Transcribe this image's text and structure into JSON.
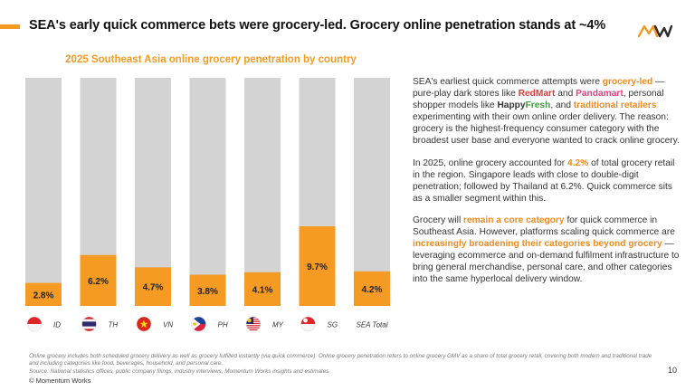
{
  "header": {
    "title": "SEA's early quick commerce bets were grocery-led. Grocery online penetration stands at ~4%",
    "logo_text": "MW"
  },
  "chart_data": {
    "type": "bar",
    "title": "2025 Southeast Asia online grocery penetration by country",
    "categories": [
      "ID",
      "TH",
      "VN",
      "PH",
      "MY",
      "SG",
      "SEA Total"
    ],
    "values": [
      2.8,
      6.2,
      4.7,
      3.8,
      4.1,
      9.7,
      4.2
    ],
    "data_labels": [
      "2.8%",
      "6.2%",
      "4.7%",
      "3.8%",
      "4.1%",
      "9.7%",
      "4.2%"
    ],
    "ylim": [
      0,
      100
    ],
    "unit": "%",
    "grid": false,
    "legend": "none",
    "bar_color": "#f59a23",
    "background_bar_color": "#d3d3d3",
    "flags": [
      "indonesia-flag",
      "thailand-flag",
      "vietnam-flag",
      "philippines-flag",
      "malaysia-flag",
      "singapore-flag",
      ""
    ]
  },
  "body": {
    "p1": {
      "t1": "SEA's earliest quick commerce attempts were ",
      "hl1": "grocery-led",
      "t2": " — pure-play dark stores like ",
      "redmart": "RedMart",
      "t3": " and ",
      "pandamart": "Pandamart",
      "t4": ", personal shopper models like ",
      "happy": "Happy",
      "fresh": "Fresh",
      "t5": ", and ",
      "hl2": "traditional retailers",
      "t6": " experimenting with their own online order delivery. The reason: grocery is the highest-frequency consumer category with the broadest user base and everyone wanted to crack online grocery."
    },
    "p2": {
      "t1": "In 2025, online grocery accounted for ",
      "hl1": "4.2%",
      "t2": " of total grocery retail in the region. Singapore leads with close to double-digit penetration; followed by Thailand at 6.2%. Quick commerce sits as a smaller segment within this."
    },
    "p3": {
      "t1": "Grocery will ",
      "hl1": "remain a core category",
      "t2": " for quick commerce in Southeast Asia. However, platforms scaling quick commerce are ",
      "hl2": "increasingly broadening their categories beyond grocery",
      "t3": " — leveraging ecommerce and on-demand fulfilment infrastructure to bring general merchandise, personal care, and other categories into the same hyperlocal delivery window."
    }
  },
  "footer": {
    "note1": "Online grocery includes both scheduled grocery delivery as well as grocery fulfilled instantly (via quick commerce). Online grocery penetration refers to online grocery GMV as a share of total grocery retail, covering both modern and traditional trade and including categories like food, beverages, household, and personal care.",
    "source": "Source: National statistics offices, public company filings, industry interviews, Momentum Works insights and estimates",
    "copyright": "© Momentum Works",
    "page": "10"
  }
}
